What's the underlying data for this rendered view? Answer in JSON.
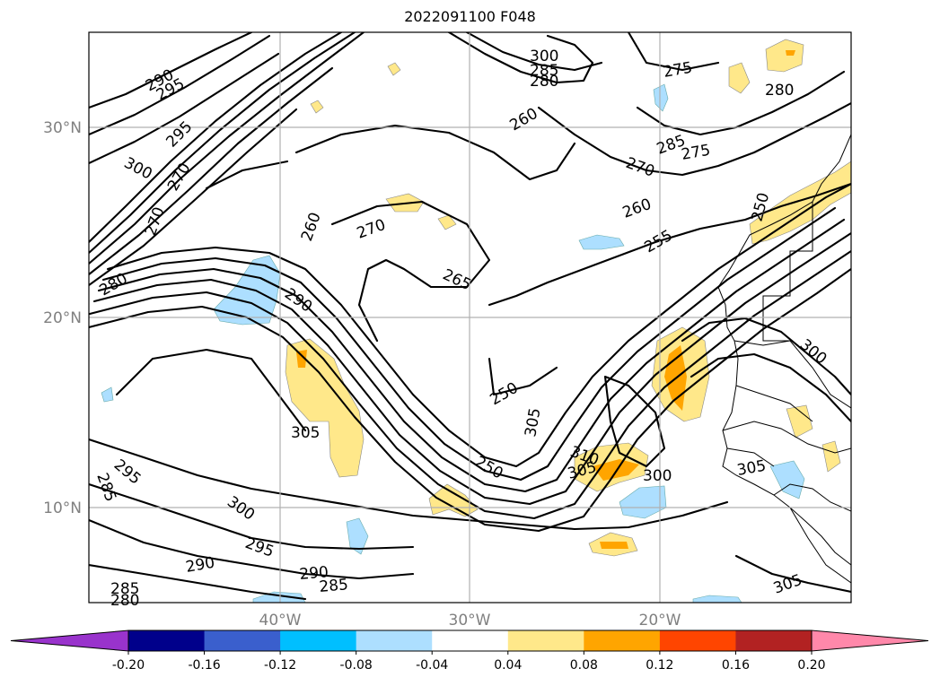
{
  "title": "2022091100 F048",
  "axes": {
    "lat_labels": [
      "30°N",
      "20°N",
      "10°N"
    ],
    "lon_labels": [
      "40°W",
      "30°W",
      "20°W"
    ]
  },
  "contour_labels": [
    "290",
    "295",
    "300",
    "295",
    "270",
    "270",
    "290",
    "300",
    "285",
    "280",
    "260",
    "260",
    "270",
    "265",
    "255",
    "250",
    "260",
    "270",
    "275",
    "280",
    "285",
    "250",
    "250",
    "300",
    "305",
    "310",
    "305",
    "300",
    "305",
    "300",
    "295",
    "290",
    "290",
    "285",
    "285",
    "280",
    "285",
    "295",
    "275",
    "280",
    "305",
    "305"
  ],
  "colorbar": {
    "ticks": [
      "-0.20",
      "-0.16",
      "-0.12",
      "-0.08",
      "-0.04",
      "0.04",
      "0.08",
      "0.12",
      "0.16",
      "0.20"
    ],
    "colors": [
      "#9933cc",
      "#00008b",
      "#3a5fcd",
      "#00bfff",
      "#addfff",
      "#ffffff",
      "#ffe88a",
      "#ffa500",
      "#ff4500",
      "#b22222",
      "#ff88aa"
    ],
    "under_color": "#9933cc",
    "over_color": "#ff88aa"
  }
}
